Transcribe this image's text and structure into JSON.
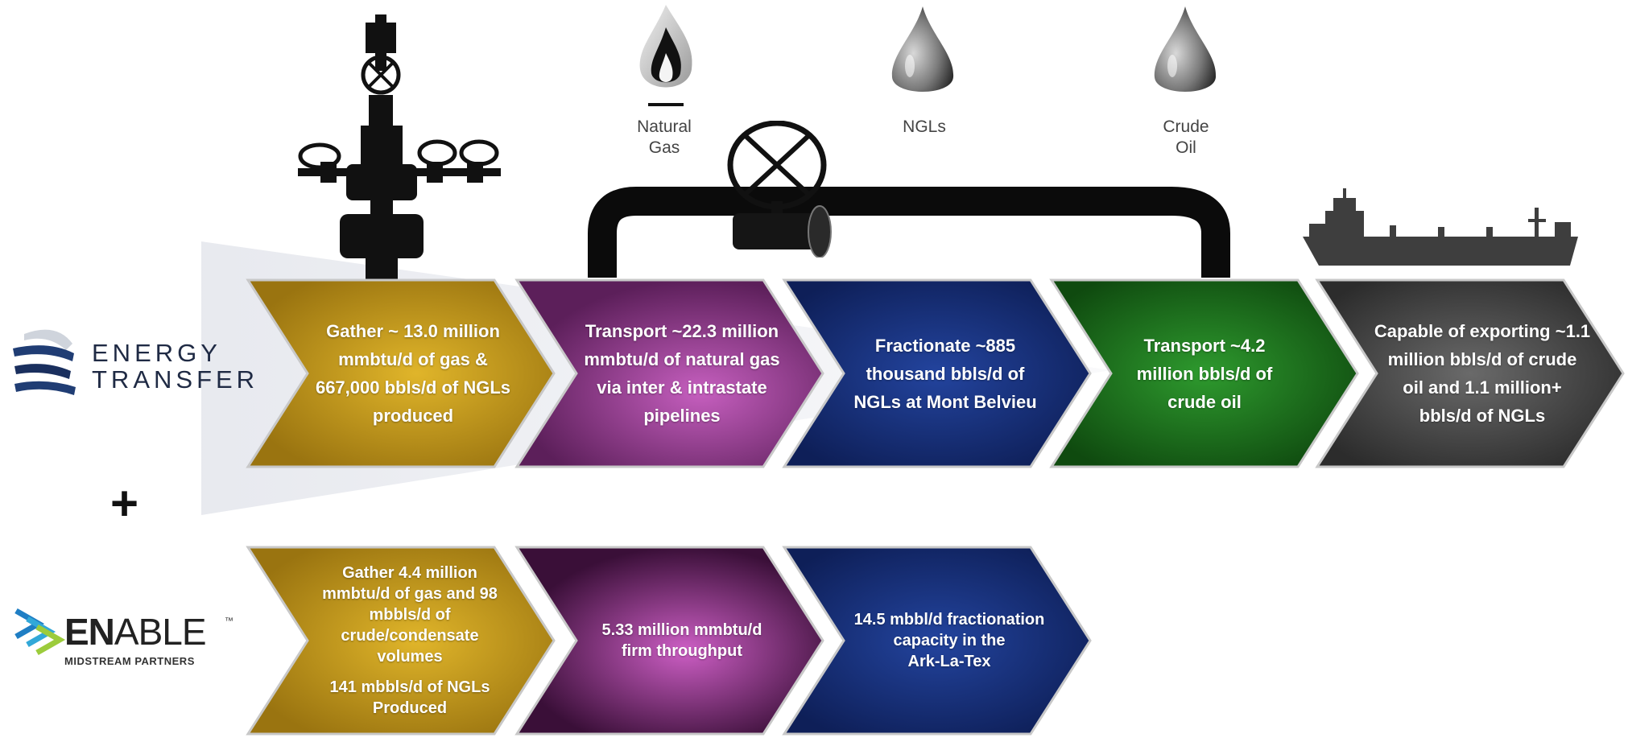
{
  "companies": {
    "energy_transfer": {
      "line1": "ENERGY",
      "line2": "TRANSFER"
    },
    "enable": {
      "name_en": "EN",
      "name_able": "ABLE",
      "tm": "™",
      "subtitle": "MIDSTREAM PARTNERS"
    },
    "plus": "+"
  },
  "products": [
    {
      "id": "natural-gas",
      "icon": "flame-icon",
      "line1": "Natural",
      "line2": "Gas"
    },
    {
      "id": "ngls",
      "icon": "droplet-icon",
      "line1": "NGLs",
      "line2": ""
    },
    {
      "id": "crude-oil",
      "icon": "droplet-icon",
      "line1": "Crude",
      "line2": "Oil"
    }
  ],
  "icons": [
    "wellhead-icon",
    "pipeline-icon",
    "valve-wheel-icon",
    "tanker-ship-icon",
    "energy-transfer-logo-icon",
    "enable-logo-icon"
  ],
  "energy_transfer_row": [
    {
      "stage": "gather",
      "color": "#c99a14",
      "lines": [
        "Gather ~ 13.0 million",
        "mmbtu/d of gas &",
        "667,000 bbls/d of NGLs",
        "produced"
      ]
    },
    {
      "stage": "transport-gas",
      "color": "#8f3a8c",
      "lines": [
        "Transport  ~22.3 million",
        "mmbtu/d of natural gas",
        "via inter & intrastate",
        "pipelines"
      ]
    },
    {
      "stage": "fractionate",
      "color": "#16307a",
      "lines": [
        "Fractionate ~885",
        "thousand bbls/d of",
        "NGLs at Mont Belvieu"
      ]
    },
    {
      "stage": "transport-crude",
      "color": "#1c6b1c",
      "lines": [
        "Transport ~4.2",
        "million bbls/d of",
        "crude oil"
      ]
    },
    {
      "stage": "export",
      "color": "#4a4a4a",
      "lines": [
        "Capable of exporting ~1.1",
        "million bbls/d of crude",
        "oil and 1.1 million+",
        "bbls/d of NGLs"
      ]
    }
  ],
  "enable_row": [
    {
      "stage": "gather",
      "color": "#c99a14",
      "lines": [
        "Gather 4.4 million",
        "mmbtu/d of gas and 98",
        "mbbls/d of",
        "crude/condensate",
        "volumes",
        "",
        "141 mbbls/d of NGLs",
        "Produced"
      ]
    },
    {
      "stage": "throughput",
      "color": "#8f3a8c",
      "lines": [
        "5.33 million mmbtu/d",
        "firm throughput"
      ]
    },
    {
      "stage": "fractionation",
      "color": "#16307a",
      "lines": [
        "14.5 mbbl/d fractionation",
        "capacity in the",
        "Ark-La-Tex"
      ]
    }
  ],
  "colors": {
    "gold": "#c99a14",
    "purple": "#8f3a8c",
    "navy": "#16307a",
    "green": "#1c6b1c",
    "gray": "#4a4a4a",
    "enable_blue": "#1e8fd0"
  }
}
